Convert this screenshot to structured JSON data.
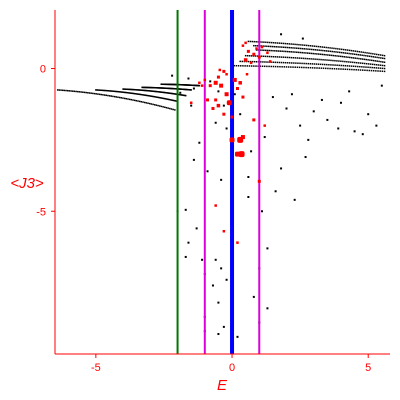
{
  "chart_data": {
    "type": "scatter",
    "xlabel": "E",
    "ylabel": "<J3>",
    "xlim": [
      -6.5,
      5.8
    ],
    "ylim": [
      -10,
      2.05
    ],
    "x_ticks": [
      {
        "value": -5,
        "label": "-5"
      },
      {
        "value": 0,
        "label": "0"
      },
      {
        "value": 5,
        "label": "5"
      }
    ],
    "y_ticks": [
      {
        "value": 0,
        "label": "0"
      },
      {
        "value": -5,
        "label": "-5"
      }
    ],
    "grid": false,
    "colors": {
      "axes": "#ff0000",
      "black_points": "#000000",
      "red_points": "#ff0000",
      "green_line": "#007700",
      "magenta_line": "#dd00dd",
      "blue_line": "#0000ff"
    },
    "vertical_lines": [
      {
        "x": -2.0,
        "color": "#007700"
      },
      {
        "x": -1.0,
        "color": "#dd00dd"
      },
      {
        "x": 0.0,
        "color": "#0000ff"
      },
      {
        "x": 1.0,
        "color": "#dd00dd"
      }
    ],
    "black_bands": [
      {
        "x_start": -6.4,
        "y_start": -0.75,
        "x_end": -2.1,
        "y_end": -1.45
      },
      {
        "x_start": -5.0,
        "y_start": -0.75,
        "x_end": -2.0,
        "y_end": -1.15
      },
      {
        "x_start": -4.0,
        "y_start": -0.72,
        "x_end": -1.7,
        "y_end": -0.95
      },
      {
        "x_start": -3.3,
        "y_start": -0.66,
        "x_end": -1.5,
        "y_end": -0.75
      },
      {
        "x_start": -2.6,
        "y_start": -0.55,
        "x_end": -1.2,
        "y_end": -0.6
      },
      {
        "x_start": 0.6,
        "y_start": 0.95,
        "x_end": 5.6,
        "y_end": 0.45
      },
      {
        "x_start": 0.8,
        "y_start": 0.8,
        "x_end": 5.6,
        "y_end": 0.35
      },
      {
        "x_start": 0.9,
        "y_start": 0.65,
        "x_end": 5.6,
        "y_end": 0.22
      },
      {
        "x_start": 0.5,
        "y_start": 0.45,
        "x_end": 5.6,
        "y_end": 0.1
      },
      {
        "x_start": 0.3,
        "y_start": 0.25,
        "x_end": 5.6,
        "y_end": 0.0
      },
      {
        "x_start": 0.0,
        "y_start": 0.1,
        "x_end": 5.6,
        "y_end": -0.1
      }
    ],
    "black_points": [
      [
        -2.0,
        -5.0
      ],
      [
        -1.7,
        -4.95
      ],
      [
        -1.6,
        -6.1
      ],
      [
        -1.7,
        -6.6
      ],
      [
        -1.3,
        -5.6
      ],
      [
        -1.1,
        -6.7
      ],
      [
        -1.0,
        -7.2
      ],
      [
        -0.6,
        -6.7
      ],
      [
        -0.7,
        -7.6
      ],
      [
        -1.0,
        -8.7
      ],
      [
        -0.5,
        -8.2
      ],
      [
        -0.3,
        -9.05
      ],
      [
        -0.4,
        -7.0
      ],
      [
        -1.0,
        -9.2
      ],
      [
        -0.5,
        -9.3
      ],
      [
        -0.2,
        -7.4
      ],
      [
        0.6,
        -4.5
      ],
      [
        1.1,
        -5.0
      ],
      [
        1.3,
        -6.3
      ],
      [
        1.6,
        -4.3
      ],
      [
        2.3,
        -4.6
      ],
      [
        1.0,
        -7.0
      ],
      [
        1.3,
        -8.4
      ],
      [
        1.0,
        -8.9
      ],
      [
        0.8,
        -8.0
      ],
      [
        1.5,
        -1.0
      ],
      [
        2.0,
        -1.4
      ],
      [
        2.5,
        -2.0
      ],
      [
        3.0,
        -1.5
      ],
      [
        3.5,
        -1.8
      ],
      [
        4.0,
        -1.2
      ],
      [
        4.5,
        -2.2
      ],
      [
        5.0,
        -1.6
      ],
      [
        5.3,
        -2.0
      ],
      [
        4.8,
        -2.3
      ],
      [
        3.9,
        -2.1
      ],
      [
        2.8,
        -2.5
      ],
      [
        1.2,
        -2.4
      ],
      [
        2.2,
        -0.9
      ],
      [
        3.3,
        -1.1
      ],
      [
        4.3,
        -0.8
      ],
      [
        5.5,
        -0.6
      ],
      [
        0.3,
        -1.6
      ],
      [
        0.6,
        -3.8
      ],
      [
        0.7,
        -2.9
      ],
      [
        -0.4,
        -3.9
      ],
      [
        -0.9,
        -3.6
      ],
      [
        -1.4,
        -3.2
      ],
      [
        -1.2,
        -2.6
      ],
      [
        -0.6,
        -1.9
      ],
      [
        -1.5,
        -1.3
      ],
      [
        -0.2,
        -2.1
      ],
      [
        2.7,
        -3.1
      ],
      [
        1.8,
        -3.5
      ],
      [
        0.2,
        -9.4
      ],
      [
        -1.9,
        -0.85
      ],
      [
        -1.4,
        -0.7
      ],
      [
        -0.8,
        -0.45
      ],
      [
        -1.6,
        -0.35
      ],
      [
        -2.2,
        -0.25
      ],
      [
        -0.5,
        -0.8
      ],
      [
        -0.3,
        -1.3
      ],
      [
        0.1,
        -0.9
      ],
      [
        1.8,
        1.2
      ],
      [
        2.6,
        1.05
      ]
    ],
    "red_points": [
      [
        -1.2,
        -0.5,
        2.5
      ],
      [
        -1.0,
        -0.4,
        2.5
      ],
      [
        -0.8,
        -0.6,
        3
      ],
      [
        -0.6,
        -0.5,
        4
      ],
      [
        -0.5,
        -0.3,
        3
      ],
      [
        -0.4,
        -0.6,
        4
      ],
      [
        -0.3,
        -0.1,
        3
      ],
      [
        -0.2,
        -0.2,
        2.5
      ],
      [
        0.1,
        -0.4,
        4
      ],
      [
        0.2,
        -0.7,
        3
      ],
      [
        0.3,
        -0.5,
        3.5
      ],
      [
        0.5,
        0.3,
        3.5
      ],
      [
        0.5,
        0.9,
        2.5
      ],
      [
        0.6,
        0.6,
        3
      ],
      [
        0.7,
        0.2,
        2.5
      ],
      [
        0.8,
        0.5,
        3
      ],
      [
        0.9,
        0.7,
        2.5
      ],
      [
        1.0,
        0.4,
        3
      ],
      [
        1.1,
        0.75,
        2.5
      ],
      [
        1.3,
        0.55,
        2.5
      ],
      [
        1.4,
        0.25,
        2.5
      ],
      [
        0.4,
        0.8,
        2.5
      ],
      [
        -0.9,
        -1.1,
        3
      ],
      [
        -0.6,
        -1.1,
        3
      ],
      [
        -0.7,
        -1.4,
        3
      ],
      [
        -0.5,
        -1.3,
        3.5
      ],
      [
        -0.2,
        -0.9,
        4
      ],
      [
        -0.1,
        -1.2,
        5
      ],
      [
        -0.3,
        -1.6,
        3
      ],
      [
        0.0,
        -1.7,
        3
      ],
      [
        0.0,
        -2.5,
        5
      ],
      [
        0.3,
        -2.5,
        6
      ],
      [
        0.4,
        -2.4,
        4
      ],
      [
        0.2,
        -3.0,
        5
      ],
      [
        0.35,
        -3.0,
        6
      ],
      [
        0.8,
        -1.8,
        3
      ],
      [
        1.2,
        -2.0,
        2.5
      ],
      [
        1.0,
        -3.95,
        3
      ],
      [
        -0.6,
        -4.8,
        2.5
      ],
      [
        -0.3,
        -5.7,
        2.5
      ],
      [
        0.2,
        -6.1,
        2.5
      ],
      [
        -1.5,
        -1.2,
        2.5
      ],
      [
        -1.1,
        -0.6,
        2.5
      ],
      [
        0.4,
        -1.0,
        3
      ],
      [
        -0.45,
        -0.05,
        2.5
      ],
      [
        0.55,
        -0.2,
        2.5
      ]
    ]
  }
}
